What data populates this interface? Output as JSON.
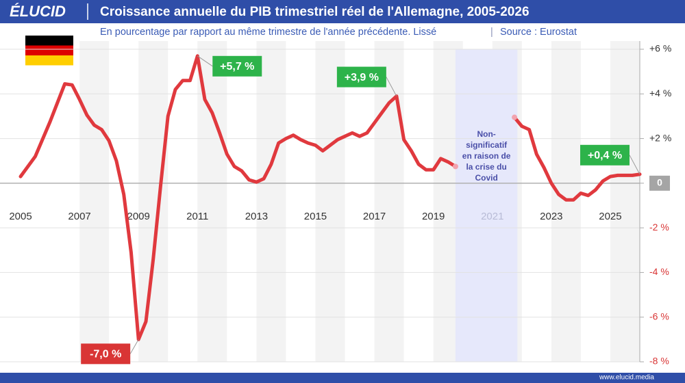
{
  "brand": "ÉLUCID",
  "footer": "www.elucid.media",
  "chart_data": {
    "type": "line",
    "title": "Croissance annuelle du PIB trimestriel réel de l'Allemagne, 2005-2026",
    "subtitle": "En pourcentage par rapport au même trimestre de l'année précédente. Lissé",
    "source": "Source : Eurostat",
    "xlim": [
      2005,
      2026
    ],
    "xticks": [
      2005,
      2007,
      2009,
      2011,
      2013,
      2015,
      2017,
      2019,
      2021,
      2023,
      2025
    ],
    "ylim": [
      -8,
      6
    ],
    "yticks": [
      {
        "value": 6,
        "label": "+6 %"
      },
      {
        "value": 4,
        "label": "+4 %"
      },
      {
        "value": 2,
        "label": "+2 %"
      },
      0,
      {
        "value": -2,
        "label": "-2 %"
      },
      {
        "value": -4,
        "label": "-4 %"
      },
      {
        "value": -6,
        "label": "-6 %"
      },
      {
        "value": -8,
        "label": "-8 %"
      }
    ],
    "grid": true,
    "shaded_region": [
      2019.75,
      2021.85
    ],
    "shaded_note": [
      "Non-",
      "significatif",
      "en raison de",
      "la crise du",
      "Covid"
    ],
    "x": [
      2005.0,
      2005.5,
      2006.0,
      2006.25,
      2006.5,
      2006.75,
      2007.0,
      2007.25,
      2007.5,
      2007.75,
      2008.0,
      2008.25,
      2008.5,
      2008.75,
      2009.0,
      2009.25,
      2009.5,
      2009.75,
      2010.0,
      2010.25,
      2010.5,
      2010.75,
      2011.0,
      2011.25,
      2011.5,
      2011.75,
      2012.0,
      2012.25,
      2012.5,
      2012.75,
      2013.0,
      2013.25,
      2013.5,
      2013.75,
      2014.0,
      2014.25,
      2014.5,
      2014.75,
      2015.0,
      2015.25,
      2015.5,
      2015.75,
      2016.0,
      2016.25,
      2016.5,
      2016.75,
      2017.0,
      2017.25,
      2017.5,
      2017.75,
      2018.0,
      2018.25,
      2018.5,
      2018.75,
      2019.0,
      2019.25,
      2019.5,
      2019.75,
      2020.0,
      2021.5,
      2021.75,
      2022.0,
      2022.25,
      2022.5,
      2022.75,
      2023.0,
      2023.25,
      2023.5,
      2023.75,
      2024.0,
      2024.25,
      2024.5,
      2024.75,
      2025.0,
      2025.25,
      2025.5,
      2025.75,
      2026.0
    ],
    "series": [
      {
        "name": "PIB",
        "color": "#e0393e",
        "values": [
          0.3,
          1.2,
          2.75,
          3.6,
          4.45,
          4.4,
          3.75,
          3.05,
          2.6,
          2.4,
          1.9,
          1.0,
          -0.5,
          -3.1,
          -7.0,
          -6.2,
          -3.4,
          -0.1,
          3.0,
          4.2,
          4.6,
          4.6,
          5.7,
          3.75,
          3.15,
          2.25,
          1.3,
          0.75,
          0.55,
          0.15,
          0.05,
          0.2,
          0.85,
          1.8,
          2.0,
          2.15,
          1.95,
          1.8,
          1.7,
          1.45,
          1.7,
          1.95,
          2.1,
          2.25,
          2.1,
          2.25,
          2.7,
          3.15,
          3.6,
          3.9,
          1.95,
          1.45,
          0.85,
          0.6,
          0.6,
          1.1,
          0.95,
          0.75,
          null,
          null,
          2.95,
          2.55,
          2.4,
          1.3,
          0.7,
          0.0,
          -0.5,
          -0.75,
          -0.75,
          -0.45,
          -0.55,
          -0.3,
          0.1,
          0.3,
          0.35,
          0.35,
          0.35,
          0.4
        ]
      }
    ],
    "annotations": [
      {
        "x": 2011.0,
        "y": 5.7,
        "label": "+5,7 %",
        "color": "#2db34a",
        "position": "right"
      },
      {
        "x": 2017.75,
        "y": 3.9,
        "label": "+3,9 %",
        "color": "#2db34a",
        "position": "upper-left"
      },
      {
        "x": 2009.0,
        "y": -7.0,
        "label": "-7,0 %",
        "color": "#d93535",
        "position": "lower-left"
      },
      {
        "x": 2026.0,
        "y": 0.4,
        "label": "+0,4 %",
        "color": "#2db34a",
        "position": "upper-left"
      }
    ]
  }
}
